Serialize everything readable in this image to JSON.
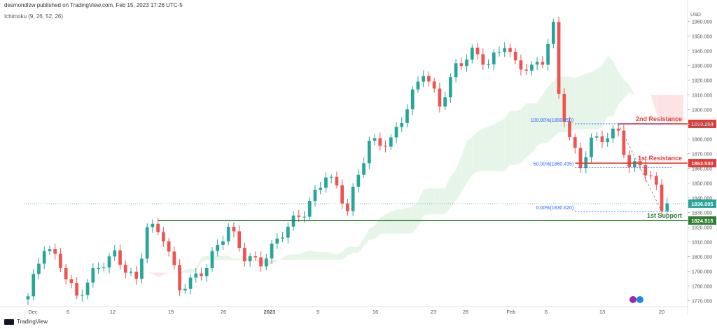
{
  "header": {
    "published": "desmondlzw published on TradingView.com, Feb 15, 2023 17:26 UTC-5",
    "indicator": "Ichimoku (9, 26, 52, 26)",
    "footer": "TradingView"
  },
  "chart_data": {
    "type": "candlestick",
    "currency_label": "USD",
    "ylim": [
      1766,
      1964
    ],
    "yticks": [
      1770,
      1780,
      1790,
      1800,
      1810,
      1820,
      1830,
      1840,
      1850,
      1860,
      1870,
      1880,
      1890,
      1900,
      1910,
      1920,
      1930,
      1940,
      1950,
      1960
    ],
    "ytick_labels": [
      "1770.000",
      "1780.000",
      "1790.000",
      "1800.000",
      "1810.000",
      "1820.000",
      "1830.000",
      "1840.000",
      "1850.000",
      "1860.000",
      "1870.000",
      "1880.000",
      "1890.000",
      "1900.000",
      "1910.000",
      "1920.000",
      "1930.000",
      "1940.000",
      "1950.000",
      "1960.000"
    ],
    "xticks": [
      "Dec",
      "6",
      "12",
      "19",
      "26",
      "2023",
      "9",
      "16",
      "23",
      "26",
      "Feb",
      "6",
      "13",
      "20"
    ],
    "colors": {
      "up": "#26a69a",
      "down": "#ef5350",
      "support": "#2e7d32",
      "resistance": "#e53935",
      "current": "#26a69a",
      "cloud_up": "#e7f5e9",
      "cloud_down": "#fde3e3"
    },
    "anchors": [
      {
        "t": 0,
        "p": 1773
      },
      {
        "t": 3,
        "p": 1805
      },
      {
        "t": 6,
        "p": 1795
      },
      {
        "t": 9,
        "p": 1774
      },
      {
        "t": 12,
        "p": 1788
      },
      {
        "t": 16,
        "p": 1800
      },
      {
        "t": 20,
        "p": 1785
      },
      {
        "t": 22,
        "p": 1822
      },
      {
        "t": 25,
        "p": 1812
      },
      {
        "t": 28,
        "p": 1778
      },
      {
        "t": 33,
        "p": 1795
      },
      {
        "t": 37,
        "p": 1818
      },
      {
        "t": 40,
        "p": 1800
      },
      {
        "t": 43,
        "p": 1798
      },
      {
        "t": 47,
        "p": 1815
      },
      {
        "t": 51,
        "p": 1830
      },
      {
        "t": 55,
        "p": 1858
      },
      {
        "t": 57,
        "p": 1847
      },
      {
        "t": 59,
        "p": 1830
      },
      {
        "t": 63,
        "p": 1878
      },
      {
        "t": 67,
        "p": 1880
      },
      {
        "t": 70,
        "p": 1900
      },
      {
        "t": 73,
        "p": 1925
      },
      {
        "t": 76,
        "p": 1905
      },
      {
        "t": 79,
        "p": 1930
      },
      {
        "t": 82,
        "p": 1937
      },
      {
        "t": 85,
        "p": 1930
      },
      {
        "t": 88,
        "p": 1947
      },
      {
        "t": 90,
        "p": 1932
      },
      {
        "t": 93,
        "p": 1926
      },
      {
        "t": 95,
        "p": 1932
      },
      {
        "t": 97,
        "p": 1956
      },
      {
        "t": 98,
        "p": 1912
      },
      {
        "t": 100,
        "p": 1882
      },
      {
        "t": 102,
        "p": 1863
      },
      {
        "t": 104,
        "p": 1877
      },
      {
        "t": 107,
        "p": 1880
      },
      {
        "t": 109,
        "p": 1886
      },
      {
        "t": 111,
        "p": 1862
      },
      {
        "t": 113,
        "p": 1865
      },
      {
        "t": 116,
        "p": 1845
      },
      {
        "t": 117,
        "p": 1832
      },
      {
        "t": 118,
        "p": 1836
      }
    ],
    "levels": [
      {
        "name": "2nd Resistance",
        "label": "2nd Resistance",
        "value": 1890.25,
        "tag": "1890.250",
        "color": "#e53935",
        "t_start": 109
      },
      {
        "name": "1st Resistance",
        "label": "1st Resistance",
        "value": 1863.53,
        "tag": "1863.530",
        "color": "#e53935",
        "t_start": 101
      },
      {
        "name": "1st Support",
        "label": "1st Support",
        "value": 1824.515,
        "tag": "1824.515",
        "color": "#2e7d32",
        "t_start": 24
      }
    ],
    "current_price": {
      "value": 1836.005,
      "tag": "1836.005"
    },
    "fibonacci": [
      {
        "level": "100.00%",
        "price": 1890.25,
        "label": "100.00%(1890.250)"
      },
      {
        "level": "50.00%",
        "price": 1860.435,
        "label": "50.00%(1860.435)"
      },
      {
        "level": "0.00%",
        "price": 1830.62,
        "label": "0.00%(1830.620)"
      }
    ]
  }
}
